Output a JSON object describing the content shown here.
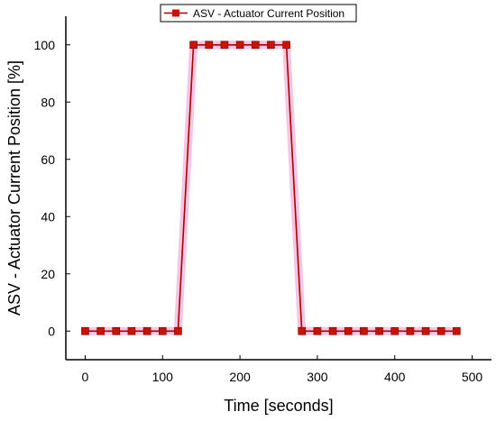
{
  "chart_data": {
    "type": "line",
    "xlabel": "Time [seconds]",
    "ylabel": "ASV - Actuator Current Position [%]",
    "xlim": [
      -25,
      525
    ],
    "ylim": [
      -10,
      110
    ],
    "x_ticks": [
      0,
      100,
      200,
      300,
      400,
      500
    ],
    "y_ticks": [
      0,
      20,
      40,
      60,
      80,
      100
    ],
    "grid": false,
    "legend_position": "top-center",
    "series": [
      {
        "name": "ASV - Actuator Current Position",
        "color": "#aa0000",
        "marker_color": "#cc1100",
        "marker": "square",
        "x": [
          0,
          20,
          40,
          60,
          80,
          100,
          120,
          140,
          160,
          180,
          200,
          220,
          240,
          260,
          280,
          300,
          320,
          340,
          360,
          380,
          400,
          420,
          440,
          460,
          480
        ],
        "y": [
          0,
          0,
          0,
          0,
          0,
          0,
          0,
          100,
          100,
          100,
          100,
          100,
          100,
          100,
          0,
          0,
          0,
          0,
          0,
          0,
          0,
          0,
          0,
          0,
          0
        ]
      }
    ]
  }
}
